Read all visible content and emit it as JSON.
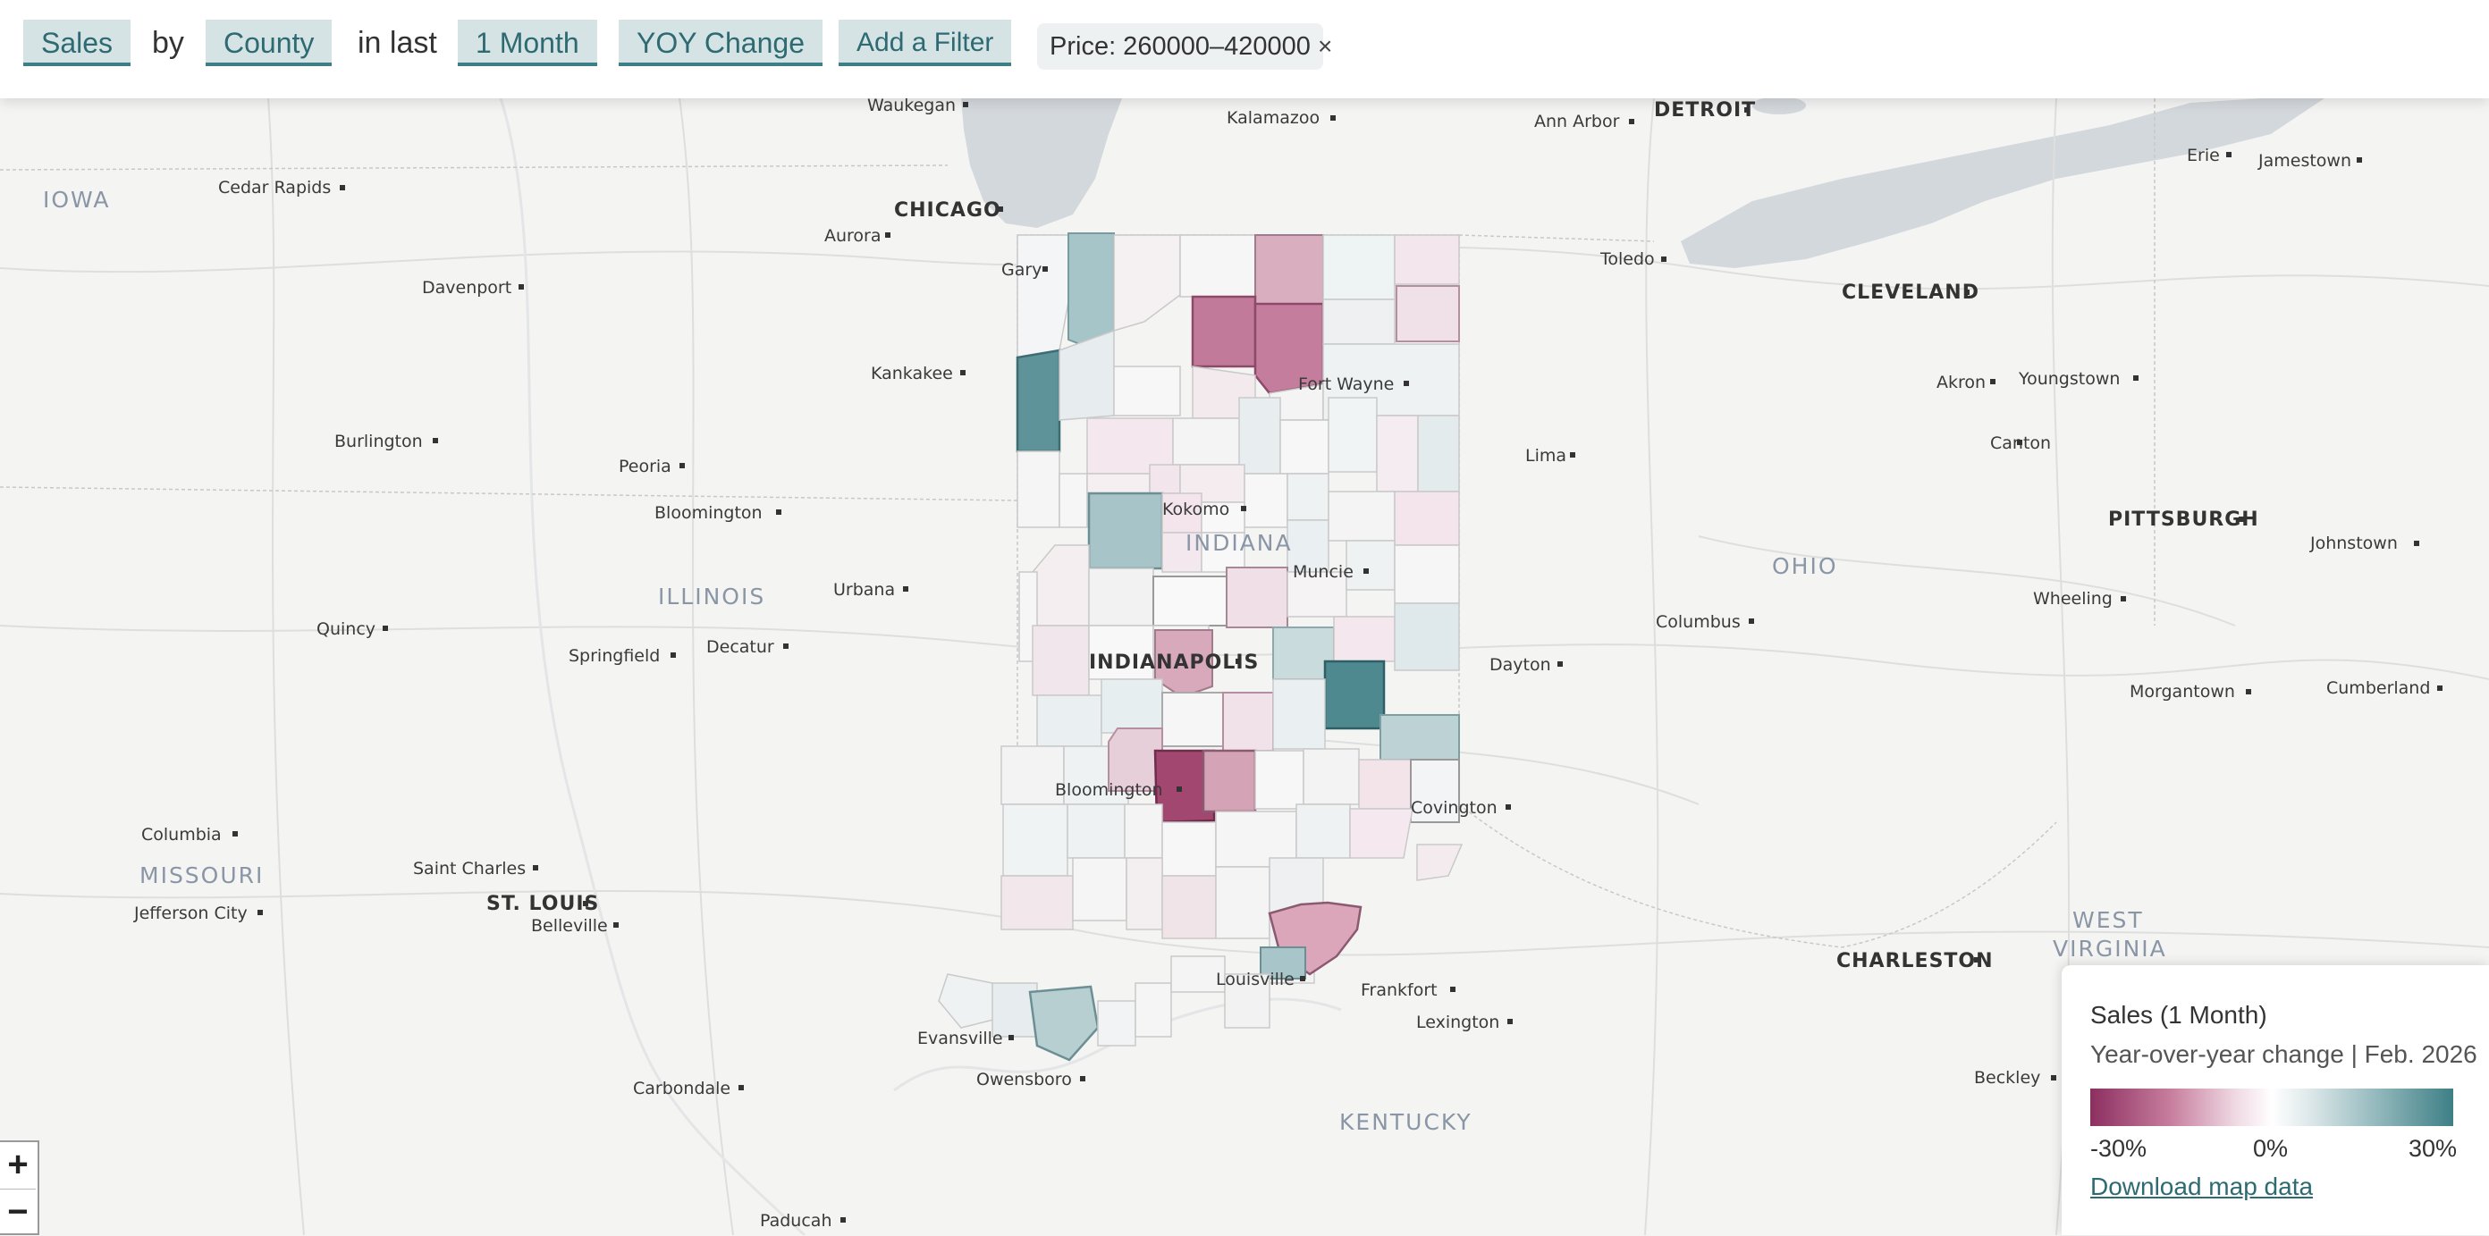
{
  "topbar": {
    "metric": "Sales",
    "by_word": "by",
    "region": "County",
    "in_last_word": "in last",
    "period": "1 Month",
    "measure": "YOY Change",
    "add_filter": "Add a Filter",
    "active_filter": "Price: 260000–420000",
    "close_symbol": "×"
  },
  "map": {
    "state_labels": {
      "iowa": "IOWA",
      "illinois": "ILLINOIS",
      "indiana": "INDIANA",
      "ohio": "OHIO",
      "missouri": "MISSOURI",
      "kentucky": "KENTUCKY",
      "west_virginia_1": "WEST",
      "west_virginia_2": "VIRGINIA"
    },
    "cities": {
      "waukegan": "Waukegan",
      "kalamazoo": "Kalamazoo",
      "ann_arbor": "Ann Arbor",
      "detroit": "DETROIT",
      "erie": "Erie",
      "jamestown": "Jamestown",
      "cedar_rapids": "Cedar Rapids",
      "chicago": "CHICAGO",
      "aurora": "Aurora",
      "gary": "Gary",
      "toledo": "Toledo",
      "cleveland": "CLEVELAND",
      "davenport": "Davenport",
      "kankakee": "Kankakee",
      "fort_wayne": "Fort Wayne",
      "akron": "Akron",
      "youngstown": "Youngstown",
      "burlington": "Burlington",
      "canton": "Canton",
      "peoria": "Peoria",
      "lima": "Lima",
      "bloomington_il": "Bloomington",
      "kokomo": "Kokomo",
      "pittsburgh": "PITTSBURGH",
      "johnstown": "Johnstown",
      "muncie": "Muncie",
      "urbana": "Urbana",
      "wheeling": "Wheeling",
      "quincy": "Quincy",
      "columbus": "Columbus",
      "springfield": "Springfield",
      "decatur": "Decatur",
      "indianapolis": "INDIANAPOLIS",
      "dayton": "Dayton",
      "morgantown": "Morgantown",
      "cumberland": "Cumberland",
      "bloomington_in": "Bloomington",
      "covington": "Covington",
      "columbia": "Columbia",
      "saint_charles": "Saint Charles",
      "st_louis": "ST. LOUIS",
      "jefferson_city": "Jefferson City",
      "belleville": "Belleville",
      "charleston": "CHARLESTON",
      "louisville": "Louisville",
      "frankfort": "Frankfort",
      "evansville": "Evansville",
      "lexington": "Lexington",
      "owensboro": "Owensboro",
      "carbondale": "Carbondale",
      "beckley": "Beckley",
      "paducah": "Paducah"
    },
    "colors": {
      "neg_strong": "#8c2f60",
      "neg_mid": "#c77d9d",
      "neg_light": "#efd9e3",
      "neutral": "#ffffff",
      "pos_light": "#dfe9eb",
      "pos_mid": "#8fb6ba",
      "pos_strong": "#3d7f86"
    }
  },
  "legend": {
    "title": "Sales (1 Month)",
    "subtitle": "Year-over-year change | Feb. 2026",
    "min_label": "-30%",
    "mid_label": "0%",
    "max_label": "30%",
    "download": "Download map data"
  },
  "zoom": {
    "in": "+",
    "out": "−"
  }
}
